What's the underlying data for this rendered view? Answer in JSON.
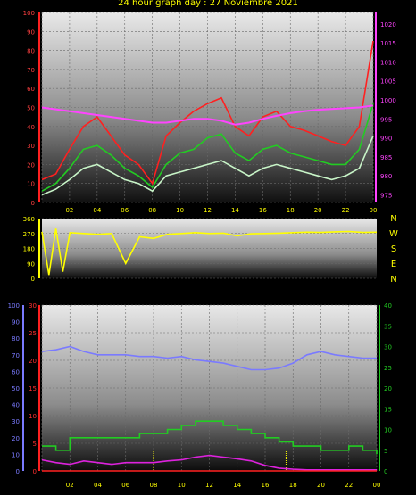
{
  "title": "24 hour graph day : 27 Noviembre 2021",
  "chart_data": [
    {
      "type": "line",
      "name": "wind-pressure",
      "x_tick_labels": [
        "02",
        "04",
        "06",
        "08",
        "10",
        "12",
        "14",
        "16",
        "18",
        "20",
        "22",
        "00"
      ],
      "y_left_ticks": [
        "0",
        "10",
        "20",
        "30",
        "40",
        "50",
        "60",
        "70",
        "80",
        "90",
        "100"
      ],
      "y_right_ticks": [
        "975",
        "980",
        "985",
        "990",
        "995",
        "1000",
        "1005",
        "1010",
        "1015",
        "1020"
      ],
      "ylim_left": [
        0,
        100
      ],
      "ylim_right": [
        973,
        1023
      ],
      "x_hours": [
        0,
        1,
        2,
        3,
        4,
        5,
        6,
        7,
        8,
        9,
        10,
        11,
        12,
        13,
        14,
        15,
        16,
        17,
        18,
        19,
        20,
        21,
        22,
        23,
        24
      ],
      "series": [
        {
          "axis": "left",
          "color": "#ff2020",
          "values": [
            12,
            15,
            28,
            40,
            45,
            35,
            25,
            20,
            10,
            35,
            42,
            48,
            52,
            55,
            40,
            35,
            45,
            48,
            40,
            38,
            35,
            32,
            30,
            40,
            85
          ]
        },
        {
          "axis": "left",
          "color": "#22cc22",
          "values": [
            6,
            10,
            18,
            28,
            30,
            25,
            18,
            14,
            8,
            20,
            26,
            28,
            34,
            36,
            26,
            22,
            28,
            30,
            26,
            24,
            22,
            20,
            20,
            28,
            52
          ]
        },
        {
          "axis": "left",
          "color": "#c8f5c8",
          "values": [
            4,
            7,
            12,
            18,
            20,
            16,
            12,
            10,
            6,
            14,
            16,
            18,
            20,
            22,
            18,
            14,
            18,
            20,
            18,
            16,
            14,
            12,
            14,
            18,
            35
          ]
        },
        {
          "axis": "right",
          "color": "#ff44ff",
          "values": [
            998,
            997.5,
            997,
            996.5,
            996,
            995.5,
            995,
            994.5,
            994,
            994,
            994.5,
            995,
            995,
            994.5,
            993.5,
            994,
            995,
            995.8,
            996.5,
            997,
            997.4,
            997.6,
            997.8,
            998,
            998.5
          ]
        }
      ]
    },
    {
      "type": "line",
      "name": "wind-direction",
      "y_ticks": [
        "0",
        "90",
        "180",
        "270",
        "360"
      ],
      "ylim": [
        0,
        360
      ],
      "directions": [
        "N",
        "W",
        "S",
        "E",
        "N"
      ],
      "x_hours": [
        0,
        0.5,
        1,
        1.5,
        2,
        3,
        4,
        5,
        6,
        7,
        8,
        9,
        10,
        11,
        12,
        13,
        14,
        15,
        16,
        17,
        18,
        19,
        20,
        21,
        22,
        23,
        24
      ],
      "series": [
        {
          "color": "#ffff00",
          "values": [
            280,
            20,
            300,
            40,
            275,
            270,
            265,
            270,
            90,
            250,
            240,
            265,
            270,
            275,
            270,
            272,
            255,
            268,
            270,
            272,
            275,
            278,
            276,
            280,
            282,
            276,
            278
          ]
        }
      ]
    },
    {
      "type": "line",
      "name": "temp-humidity-rain",
      "y_left_outer_ticks": [
        "0",
        "10",
        "20",
        "30",
        "40",
        "50",
        "60",
        "70",
        "80",
        "90",
        "100"
      ],
      "y_left_inner_ticks": [
        "0",
        "5",
        "10",
        "15",
        "20",
        "25",
        "30"
      ],
      "y_right_ticks": [
        "0",
        "5",
        "10",
        "15",
        "20",
        "25",
        "30",
        "35",
        "40"
      ],
      "ylim_outer": [
        0,
        100
      ],
      "ylim_inner": [
        0,
        30
      ],
      "ylim_right": [
        0,
        40
      ],
      "x_hours": [
        0,
        1,
        2,
        3,
        4,
        5,
        6,
        7,
        8,
        9,
        10,
        11,
        12,
        13,
        14,
        15,
        16,
        17,
        18,
        19,
        20,
        21,
        22,
        23,
        24
      ],
      "series": [
        {
          "axis": "outer",
          "color": "#7a7aff",
          "values": [
            72,
            73,
            75,
            72,
            70,
            70,
            70,
            69,
            69,
            68,
            69,
            67,
            66,
            65,
            63,
            61,
            61,
            62,
            65,
            70,
            72,
            70,
            69,
            68,
            68
          ]
        },
        {
          "axis": "right",
          "color": "#22cc22",
          "values": [
            6,
            5,
            8,
            8,
            8,
            8,
            8,
            9,
            9,
            10,
            11,
            12,
            12,
            11,
            10,
            9,
            8,
            7,
            6,
            6,
            5,
            5,
            6,
            5,
            4
          ]
        },
        {
          "axis": "inner",
          "color": "#dd22dd",
          "values": [
            2,
            1.5,
            1.2,
            1.8,
            1.5,
            1.2,
            1.5,
            1.5,
            1.5,
            1.8,
            2,
            2.5,
            2.8,
            2.5,
            2.2,
            1.8,
            1,
            0.5,
            0.3,
            0.2,
            0.2,
            0.2,
            0.2,
            0.2,
            0.2
          ]
        },
        {
          "axis": "inner",
          "color": "#ff2020",
          "values": [
            0,
            0,
            0,
            0,
            0,
            0,
            0,
            0,
            0,
            0,
            0,
            0,
            0,
            0,
            0,
            0,
            0,
            0,
            0,
            0,
            0,
            0,
            0,
            0,
            0
          ]
        }
      ],
      "markers_x": [
        8,
        17.5
      ]
    }
  ]
}
